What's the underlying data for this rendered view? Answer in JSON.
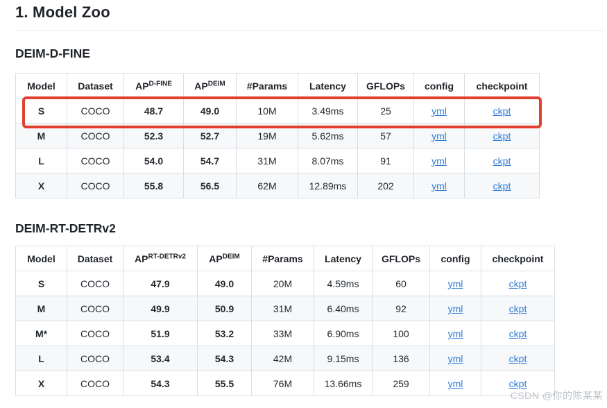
{
  "page": {
    "title": "1. Model Zoo",
    "watermark": "CSDN @你的陈某某"
  },
  "colors": {
    "highlight_red": "#e1402f",
    "link_blue": "#2e7cd6",
    "border": "#d9dee4",
    "row_alt": "#f6f8fa",
    "text": "#24292f"
  },
  "sections": [
    {
      "heading": "DEIM-D-FINE",
      "columns": [
        {
          "text": "Model",
          "sup": ""
        },
        {
          "text": "Dataset",
          "sup": ""
        },
        {
          "text": "AP",
          "sup": "D-FINE"
        },
        {
          "text": "AP",
          "sup": "DEIM"
        },
        {
          "text": "#Params",
          "sup": ""
        },
        {
          "text": "Latency",
          "sup": ""
        },
        {
          "text": "GFLOPs",
          "sup": ""
        },
        {
          "text": "config",
          "sup": ""
        },
        {
          "text": "checkpoint",
          "sup": ""
        }
      ],
      "rows": [
        {
          "highlighted": true,
          "cells": [
            "S",
            "COCO",
            "48.7",
            "49.0",
            "10M",
            "3.49ms",
            "25",
            "yml",
            "ckpt"
          ]
        },
        {
          "highlighted": false,
          "cells": [
            "M",
            "COCO",
            "52.3",
            "52.7",
            "19M",
            "5.62ms",
            "57",
            "yml",
            "ckpt"
          ]
        },
        {
          "highlighted": false,
          "cells": [
            "L",
            "COCO",
            "54.0",
            "54.7",
            "31M",
            "8.07ms",
            "91",
            "yml",
            "ckpt"
          ]
        },
        {
          "highlighted": false,
          "cells": [
            "X",
            "COCO",
            "55.8",
            "56.5",
            "62M",
            "12.89ms",
            "202",
            "yml",
            "ckpt"
          ]
        }
      ]
    },
    {
      "heading": "DEIM-RT-DETRv2",
      "columns": [
        {
          "text": "Model",
          "sup": ""
        },
        {
          "text": "Dataset",
          "sup": ""
        },
        {
          "text": "AP",
          "sup": "RT-DETRv2"
        },
        {
          "text": "AP",
          "sup": "DEIM"
        },
        {
          "text": "#Params",
          "sup": ""
        },
        {
          "text": "Latency",
          "sup": ""
        },
        {
          "text": "GFLOPs",
          "sup": ""
        },
        {
          "text": "config",
          "sup": ""
        },
        {
          "text": "checkpoint",
          "sup": ""
        }
      ],
      "rows": [
        {
          "highlighted": false,
          "cells": [
            "S",
            "COCO",
            "47.9",
            "49.0",
            "20M",
            "4.59ms",
            "60",
            "yml",
            "ckpt"
          ]
        },
        {
          "highlighted": false,
          "cells": [
            "M",
            "COCO",
            "49.9",
            "50.9",
            "31M",
            "6.40ms",
            "92",
            "yml",
            "ckpt"
          ]
        },
        {
          "highlighted": false,
          "cells": [
            "M*",
            "COCO",
            "51.9",
            "53.2",
            "33M",
            "6.90ms",
            "100",
            "yml",
            "ckpt"
          ]
        },
        {
          "highlighted": false,
          "cells": [
            "L",
            "COCO",
            "53.4",
            "54.3",
            "42M",
            "9.15ms",
            "136",
            "yml",
            "ckpt"
          ]
        },
        {
          "highlighted": false,
          "cells": [
            "X",
            "COCO",
            "54.3",
            "55.5",
            "76M",
            "13.66ms",
            "259",
            "yml",
            "ckpt"
          ]
        }
      ]
    }
  ]
}
